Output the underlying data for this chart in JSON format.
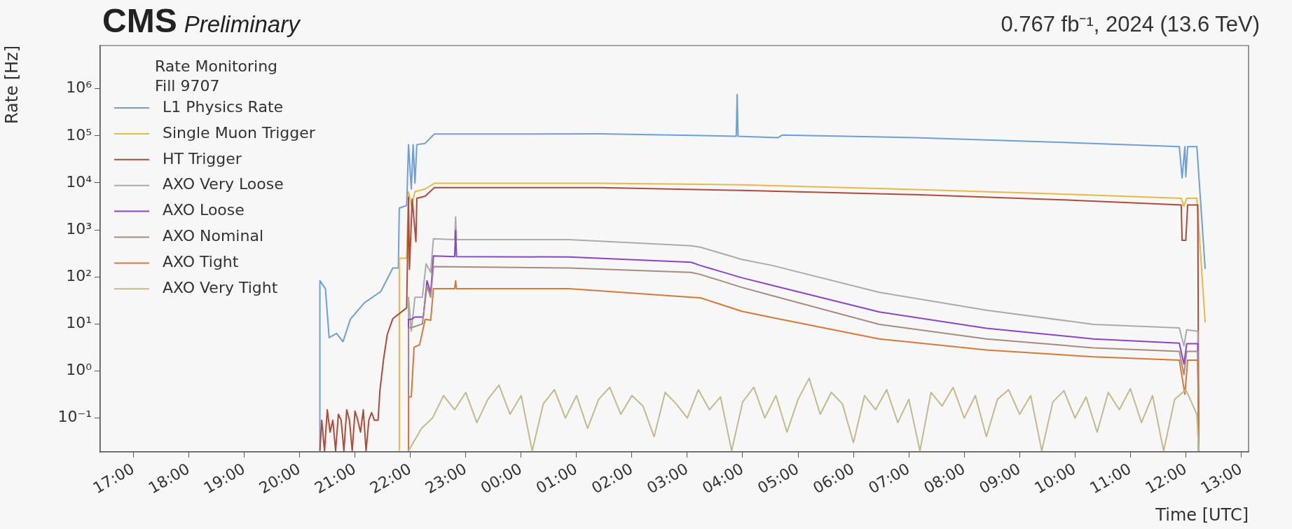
{
  "chart_data": {
    "type": "line",
    "title": "CMS",
    "subtitle": "Preliminary",
    "annotations": [
      "0.767 fb⁻¹, 2024 (13.6 TeV)"
    ],
    "xlabel": "Time [UTC]",
    "ylabel": "Rate [Hz]",
    "legend_title": "Rate Monitoring\nFill 9707",
    "legend": "top left",
    "log": true,
    "xlim": [
      "2024-06-03T16:24",
      "2024-06-04T13:08"
    ],
    "ylim": [
      0.019,
      8300000
    ],
    "xticks": [
      {
        "value": "2024-06-03T17:00",
        "label": "17:00"
      },
      {
        "value": "2024-06-03T18:00",
        "label": "18:00"
      },
      {
        "value": "2024-06-03T19:00",
        "label": "19:00"
      },
      {
        "value": "2024-06-03T20:00",
        "label": "20:00"
      },
      {
        "value": "2024-06-03T21:00",
        "label": "21:00"
      },
      {
        "value": "2024-06-03T22:00",
        "label": "22:00"
      },
      {
        "value": "2024-06-03T23:00",
        "label": "23:00"
      },
      {
        "value": "2024-06-04T00:00",
        "label": "00:00"
      },
      {
        "value": "2024-06-04T01:00",
        "label": "01:00"
      },
      {
        "value": "2024-06-04T02:00",
        "label": "02:00"
      },
      {
        "value": "2024-06-04T03:00",
        "label": "03:00"
      },
      {
        "value": "2024-06-04T04:00",
        "label": "04:00"
      },
      {
        "value": "2024-06-04T05:00",
        "label": "05:00"
      },
      {
        "value": "2024-06-04T06:00",
        "label": "06:00"
      },
      {
        "value": "2024-06-04T07:00",
        "label": "07:00"
      },
      {
        "value": "2024-06-04T08:00",
        "label": "08:00"
      },
      {
        "value": "2024-06-04T09:00",
        "label": "09:00"
      },
      {
        "value": "2024-06-04T10:00",
        "label": "10:00"
      },
      {
        "value": "2024-06-04T11:00",
        "label": "11:00"
      },
      {
        "value": "2024-06-04T12:00",
        "label": "12:00"
      },
      {
        "value": "2024-06-04T13:00",
        "label": "13:00"
      }
    ],
    "yticks": [
      {
        "value": 0.1,
        "label": "10⁻¹"
      },
      {
        "value": 1,
        "label": "10⁰"
      },
      {
        "value": 10,
        "label": "10¹"
      },
      {
        "value": 100,
        "label": "10²"
      },
      {
        "value": 1000,
        "label": "10³"
      },
      {
        "value": 10000,
        "label": "10⁴"
      },
      {
        "value": 100000,
        "label": "10⁵"
      },
      {
        "value": 1000000,
        "label": "10⁶"
      }
    ],
    "series": [
      {
        "name": "L1 Physics Rate",
        "color": "#6f9fd8",
        "x": [
          "2024-06-03T20:22",
          "2024-06-03T20:22",
          "2024-06-03T20:28",
          "2024-06-03T20:32",
          "2024-06-03T20:40",
          "2024-06-03T20:47",
          "2024-06-03T20:55",
          "2024-06-03T21:10",
          "2024-06-03T21:28",
          "2024-06-03T21:41",
          "2024-06-03T21:47",
          "2024-06-03T21:48",
          "2024-06-03T21:56",
          "2024-06-03T21:58",
          "2024-06-03T22:01",
          "2024-06-03T22:03",
          "2024-06-03T22:05",
          "2024-06-03T22:07",
          "2024-06-03T22:16",
          "2024-06-03T22:22",
          "2024-06-03T22:26",
          "2024-06-04T01:25",
          "2024-06-04T03:53",
          "2024-06-04T03:54",
          "2024-06-04T03:55",
          "2024-06-04T04:38",
          "2024-06-04T04:43",
          "2024-06-04T07:07",
          "2024-06-04T09:41",
          "2024-06-04T11:53",
          "2024-06-04T11:56",
          "2024-06-04T11:59",
          "2024-06-04T12:00",
          "2024-06-04T12:02",
          "2024-06-04T12:12",
          "2024-06-04T12:21"
        ],
        "values": [
          0.02,
          83,
          56,
          5.1,
          6.3,
          4.2,
          12.6,
          28,
          49,
          155,
          155,
          2900,
          3300,
          65000,
          7400,
          65000,
          9800,
          65000,
          69000,
          91000,
          109000,
          110000,
          98000,
          750000,
          98000,
          91000,
          104000,
          91000,
          73000,
          59000,
          12700,
          59000,
          13500,
          59000,
          59000,
          148
        ]
      },
      {
        "name": "Single Muon Trigger",
        "color": "#e8b84a",
        "x": [
          "2024-06-03T21:48",
          "2024-06-03T21:48",
          "2024-06-03T21:56",
          "2024-06-03T21:58",
          "2024-06-03T22:01",
          "2024-06-03T22:05",
          "2024-06-03T22:16",
          "2024-06-03T22:26",
          "2024-06-04T01:25",
          "2024-06-04T03:58",
          "2024-06-04T07:07",
          "2024-06-04T09:41",
          "2024-06-04T11:55",
          "2024-06-04T11:58",
          "2024-06-04T12:01",
          "2024-06-04T12:12",
          "2024-06-04T12:21"
        ],
        "values": [
          0.02,
          250,
          250,
          6500,
          3200,
          6500,
          7400,
          9800,
          9800,
          9100,
          7200,
          5800,
          4700,
          3200,
          4700,
          4700,
          10.7
        ]
      },
      {
        "name": "HT Trigger",
        "color": "#b04a3a",
        "x": [
          "2024-06-03T20:22",
          "2024-06-03T20:24",
          "2024-06-03T20:27",
          "2024-06-03T20:30",
          "2024-06-03T20:33",
          "2024-06-03T20:36",
          "2024-06-03T20:39",
          "2024-06-03T20:42",
          "2024-06-03T20:45",
          "2024-06-03T20:48",
          "2024-06-03T20:51",
          "2024-06-03T20:54",
          "2024-06-03T20:57",
          "2024-06-03T21:00",
          "2024-06-03T21:03",
          "2024-06-03T21:06",
          "2024-06-03T21:09",
          "2024-06-03T21:12",
          "2024-06-03T21:15",
          "2024-06-03T21:18",
          "2024-06-03T21:21",
          "2024-06-03T21:25",
          "2024-06-03T21:27",
          "2024-06-03T21:31",
          "2024-06-03T21:35",
          "2024-06-03T21:41",
          "2024-06-03T21:56",
          "2024-06-03T21:58",
          "2024-06-03T21:59",
          "2024-06-03T22:02",
          "2024-06-03T22:06",
          "2024-06-03T22:07",
          "2024-06-03T22:16",
          "2024-06-03T22:26",
          "2024-06-04T01:25",
          "2024-06-04T03:59",
          "2024-06-04T07:07",
          "2024-06-04T09:41",
          "2024-06-04T11:55",
          "2024-06-04T11:56",
          "2024-06-04T12:00",
          "2024-06-04T12:02",
          "2024-06-04T12:13",
          "2024-06-04T12:14"
        ],
        "values": [
          0.02,
          0.09,
          0.02,
          0.15,
          0.05,
          0.09,
          0.02,
          0.12,
          0.09,
          0.02,
          0.15,
          0.09,
          0.02,
          0.14,
          0.09,
          0.05,
          0.15,
          0.02,
          0.09,
          0.13,
          0.09,
          0.09,
          0.38,
          1.8,
          6,
          13,
          22,
          4900,
          145,
          4500,
          560,
          4700,
          5200,
          7900,
          7900,
          6900,
          5600,
          4400,
          3400,
          600,
          600,
          3400,
          3400,
          0.02
        ]
      },
      {
        "name": "AXO Very Loose",
        "color": "#a9abaa",
        "x": [
          "2024-06-03T21:58",
          "2024-06-03T21:58",
          "2024-06-03T22:01",
          "2024-06-03T22:05",
          "2024-06-03T22:13",
          "2024-06-03T22:17",
          "2024-06-03T22:22",
          "2024-06-03T22:25",
          "2024-06-03T22:48",
          "2024-06-03T22:49",
          "2024-06-03T22:50",
          "2024-06-04T00:52",
          "2024-06-04T03:04",
          "2024-06-04T03:14",
          "2024-06-04T03:59",
          "2024-06-04T04:32",
          "2024-06-04T06:28",
          "2024-06-04T08:24",
          "2024-06-04T10:20",
          "2024-06-04T11:53",
          "2024-06-04T11:58",
          "2024-06-04T12:01",
          "2024-06-04T12:13",
          "2024-06-04T12:14"
        ],
        "values": [
          0.02,
          37,
          7,
          37,
          37,
          190,
          125,
          650,
          620,
          1900,
          620,
          620,
          460,
          430,
          235,
          175,
          47,
          19.5,
          9.8,
          8.2,
          3.4,
          7.5,
          7,
          0.02
        ]
      },
      {
        "name": "AXO Loose",
        "color": "#8a44c8",
        "x": [
          "2024-06-03T21:58",
          "2024-06-03T21:58",
          "2024-06-03T22:01",
          "2024-06-03T22:05",
          "2024-06-03T22:14",
          "2024-06-03T22:18",
          "2024-06-03T22:22",
          "2024-06-03T22:25",
          "2024-06-03T22:48",
          "2024-06-03T22:49",
          "2024-06-03T22:50",
          "2024-06-04T00:52",
          "2024-06-04T03:04",
          "2024-06-04T03:14",
          "2024-06-04T03:59",
          "2024-06-04T04:32",
          "2024-06-04T06:28",
          "2024-06-04T08:24",
          "2024-06-04T10:20",
          "2024-06-04T11:53",
          "2024-06-04T11:58",
          "2024-06-04T12:01",
          "2024-06-04T12:13",
          "2024-06-04T12:14"
        ],
        "values": [
          0.02,
          12.5,
          12.5,
          14,
          14,
          83,
          45,
          280,
          270,
          970,
          270,
          265,
          205,
          175,
          96,
          66,
          18,
          8.1,
          4.8,
          3.9,
          1.4,
          3.8,
          3.8,
          0.02
        ]
      },
      {
        "name": "AXO Nominal",
        "color": "#a88a80",
        "x": [
          "2024-06-03T21:58",
          "2024-06-03T21:58",
          "2024-06-03T22:01",
          "2024-06-03T22:13",
          "2024-06-03T22:18",
          "2024-06-03T22:22",
          "2024-06-03T22:25",
          "2024-06-04T00:52",
          "2024-06-04T03:04",
          "2024-06-04T03:14",
          "2024-06-04T03:59",
          "2024-06-04T04:32",
          "2024-06-04T06:28",
          "2024-06-04T08:24",
          "2024-06-04T10:20",
          "2024-06-04T11:53",
          "2024-06-04T11:58",
          "2024-06-04T12:01",
          "2024-06-04T12:13",
          "2024-06-04T12:14"
        ],
        "values": [
          0.02,
          8.3,
          8.3,
          10,
          64,
          37,
          165,
          155,
          125,
          113,
          60,
          40,
          9.8,
          4.8,
          3.1,
          2.6,
          0.83,
          2.6,
          2.6,
          0.02
        ]
      },
      {
        "name": "AXO Tight",
        "color": "#d6783a",
        "x": [
          "2024-06-03T21:58",
          "2024-06-03T21:58",
          "2024-06-03T22:01",
          "2024-06-03T22:04",
          "2024-06-03T22:10",
          "2024-06-03T22:16",
          "2024-06-03T22:22",
          "2024-06-03T22:25",
          "2024-06-03T22:48",
          "2024-06-03T22:49",
          "2024-06-03T22:50",
          "2024-06-04T00:52",
          "2024-06-04T03:04",
          "2024-06-04T03:14",
          "2024-06-04T03:59",
          "2024-06-04T04:32",
          "2024-06-04T06:28",
          "2024-06-04T08:24",
          "2024-06-04T10:20",
          "2024-06-04T11:53",
          "2024-06-04T11:59",
          "2024-06-04T12:02",
          "2024-06-04T12:13",
          "2024-06-04T12:14"
        ],
        "values": [
          0.02,
          0.28,
          0.28,
          3.2,
          3.6,
          12.5,
          12,
          56,
          56,
          83,
          56,
          56,
          37,
          36,
          18.6,
          13.7,
          4.8,
          2.8,
          2.0,
          1.7,
          0.32,
          1.7,
          1.7,
          0.02
        ]
      },
      {
        "name": "AXO Very Tight",
        "color": "#c2b98c",
        "x": [
          "2024-06-03T21:58",
          "2024-06-03T22:12",
          "2024-06-03T22:24",
          "2024-06-03T22:36",
          "2024-06-03T22:48",
          "2024-06-03T23:00",
          "2024-06-03T23:12",
          "2024-06-03T23:24",
          "2024-06-03T23:36",
          "2024-06-03T23:48",
          "2024-06-04T00:00",
          "2024-06-04T00:12",
          "2024-06-04T00:24",
          "2024-06-04T00:36",
          "2024-06-04T00:48",
          "2024-06-04T01:00",
          "2024-06-04T01:12",
          "2024-06-04T01:24",
          "2024-06-04T01:36",
          "2024-06-04T01:48",
          "2024-06-04T02:00",
          "2024-06-04T02:12",
          "2024-06-04T02:24",
          "2024-06-04T02:36",
          "2024-06-04T02:48",
          "2024-06-04T03:00",
          "2024-06-04T03:12",
          "2024-06-04T03:24",
          "2024-06-04T03:36",
          "2024-06-04T03:48",
          "2024-06-04T04:00",
          "2024-06-04T04:12",
          "2024-06-04T04:24",
          "2024-06-04T04:36",
          "2024-06-04T04:48",
          "2024-06-04T05:00",
          "2024-06-04T05:12",
          "2024-06-04T05:24",
          "2024-06-04T05:36",
          "2024-06-04T05:48",
          "2024-06-04T06:00",
          "2024-06-04T06:12",
          "2024-06-04T06:24",
          "2024-06-04T06:36",
          "2024-06-04T06:48",
          "2024-06-04T07:00",
          "2024-06-04T07:12",
          "2024-06-04T07:24",
          "2024-06-04T07:36",
          "2024-06-04T07:48",
          "2024-06-04T08:00",
          "2024-06-04T08:12",
          "2024-06-04T08:24",
          "2024-06-04T08:36",
          "2024-06-04T08:48",
          "2024-06-04T09:00",
          "2024-06-04T09:12",
          "2024-06-04T09:24",
          "2024-06-04T09:36",
          "2024-06-04T09:48",
          "2024-06-04T10:00",
          "2024-06-04T10:12",
          "2024-06-04T10:24",
          "2024-06-04T10:36",
          "2024-06-04T10:48",
          "2024-06-04T11:00",
          "2024-06-04T11:12",
          "2024-06-04T11:24",
          "2024-06-04T11:36",
          "2024-06-04T11:48",
          "2024-06-04T12:00",
          "2024-06-04T12:12",
          "2024-06-04T12:14"
        ],
        "values": [
          0.02,
          0.06,
          0.1,
          0.3,
          0.15,
          0.35,
          0.08,
          0.25,
          0.5,
          0.12,
          0.3,
          0.02,
          0.2,
          0.4,
          0.1,
          0.3,
          0.06,
          0.25,
          0.45,
          0.12,
          0.3,
          0.18,
          0.04,
          0.35,
          0.2,
          0.1,
          0.4,
          0.15,
          0.28,
          0.02,
          0.22,
          0.45,
          0.1,
          0.3,
          0.05,
          0.25,
          0.7,
          0.12,
          0.35,
          0.2,
          0.03,
          0.3,
          0.15,
          0.4,
          0.08,
          0.25,
          0.02,
          0.35,
          0.18,
          0.45,
          0.1,
          0.3,
          0.04,
          0.25,
          0.4,
          0.12,
          0.3,
          0.02,
          0.22,
          0.38,
          0.1,
          0.28,
          0.05,
          0.35,
          0.15,
          0.42,
          0.08,
          0.3,
          0.02,
          0.25,
          0.4,
          0.12,
          0.02
        ]
      }
    ]
  }
}
